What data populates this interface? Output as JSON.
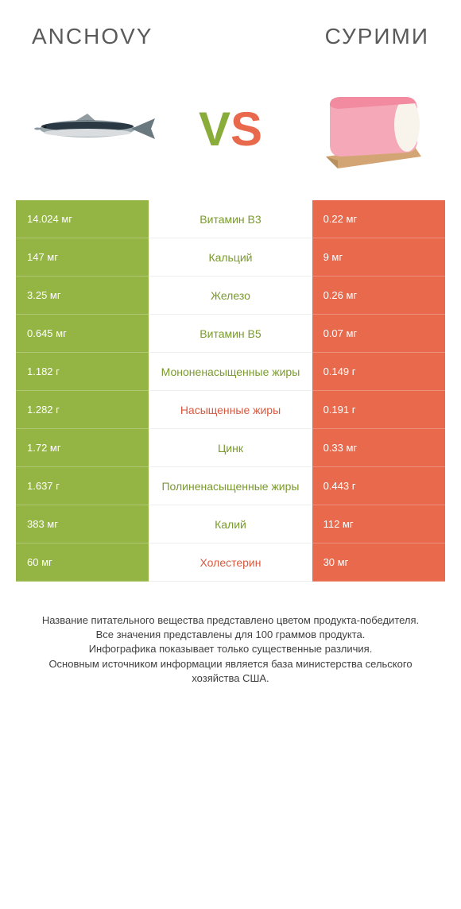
{
  "header": {
    "left_title": "ANCHOVY",
    "right_title": "СУРИМИ"
  },
  "vs": {
    "v": "V",
    "s": "S"
  },
  "colors": {
    "left_bg": "#94b543",
    "right_bg": "#e8694c",
    "mid_green_text": "#7a9a2e",
    "mid_orange_text": "#d55a40",
    "header_text": "#5a5a5a"
  },
  "rows": [
    {
      "left": "14.024 мг",
      "mid": "Витамин B3",
      "right": "0.22 мг",
      "mid_color": "green"
    },
    {
      "left": "147 мг",
      "mid": "Кальций",
      "right": "9 мг",
      "mid_color": "green"
    },
    {
      "left": "3.25 мг",
      "mid": "Железо",
      "right": "0.26 мг",
      "mid_color": "green"
    },
    {
      "left": "0.645 мг",
      "mid": "Витамин B5",
      "right": "0.07 мг",
      "mid_color": "green"
    },
    {
      "left": "1.182 г",
      "mid": "Мононенасыщенные жиры",
      "right": "0.149 г",
      "mid_color": "green"
    },
    {
      "left": "1.282 г",
      "mid": "Насыщенные жиры",
      "right": "0.191 г",
      "mid_color": "orange"
    },
    {
      "left": "1.72 мг",
      "mid": "Цинк",
      "right": "0.33 мг",
      "mid_color": "green"
    },
    {
      "left": "1.637 г",
      "mid": "Полиненасыщенные жиры",
      "right": "0.443 г",
      "mid_color": "green"
    },
    {
      "left": "383 мг",
      "mid": "Калий",
      "right": "112 мг",
      "mid_color": "green"
    },
    {
      "left": "60 мг",
      "mid": "Холестерин",
      "right": "30 мг",
      "mid_color": "orange"
    }
  ],
  "footer": {
    "line1": "Название питательного вещества представлено цветом продукта-победителя.",
    "line2": "Все значения представлены для 100 граммов продукта.",
    "line3": "Инфографика показывает только существенные различия.",
    "line4": "Основным источником информации является база министерства сельского хозяйства США."
  }
}
